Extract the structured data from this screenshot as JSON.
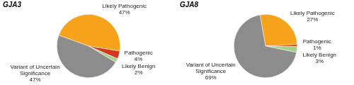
{
  "chart_data": [
    {
      "type": "pie",
      "title": "GJA3",
      "categories": [
        "Likely Pathogenic",
        "Pathogenic",
        "Likely Benign",
        "Variant of Uncertain Significance"
      ],
      "values": [
        47,
        4,
        2,
        47
      ],
      "value_labels": [
        "47%",
        "4%",
        "2%",
        "47%"
      ],
      "colors": [
        "#f7a21b",
        "#d2381f",
        "#a8d08d",
        "#8c8c8c"
      ],
      "data_labels": true
    },
    {
      "type": "pie",
      "title": "GJA8",
      "categories": [
        "Likely Pathogenic",
        "Pathogenic",
        "Likely Benign",
        "Variant of Uncertain Significance"
      ],
      "values": [
        27,
        1,
        3,
        69
      ],
      "value_labels": [
        "27%",
        "1%",
        "3%",
        "69%"
      ],
      "colors": [
        "#f7a21b",
        "#d2381f",
        "#a8d08d",
        "#8c8c8c"
      ],
      "data_labels": true
    }
  ]
}
